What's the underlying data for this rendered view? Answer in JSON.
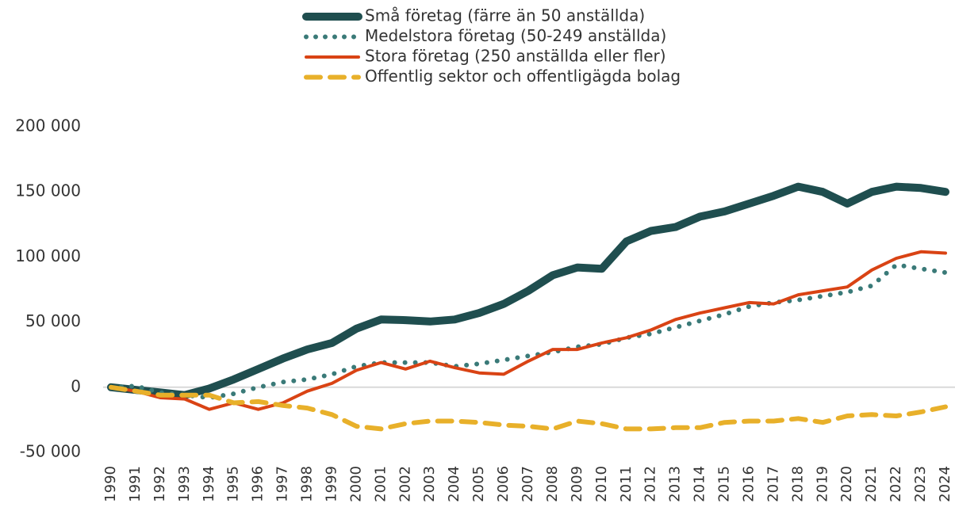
{
  "chart_data": {
    "type": "line",
    "categories": [
      "1990",
      "1991",
      "1992",
      "1993",
      "1994",
      "1995",
      "1996",
      "1997",
      "1998",
      "1999",
      "2000",
      "2001",
      "2002",
      "2003",
      "2004",
      "2005",
      "2006",
      "2007",
      "2008",
      "2009",
      "2010",
      "2011",
      "2012",
      "2013",
      "2014",
      "2015",
      "2016",
      "2017",
      "2018",
      "2019",
      "2020",
      "2021",
      "2022",
      "2023",
      "2024"
    ],
    "series": [
      {
        "name": "Små företag (färre än 50 anställda)",
        "color": "#1f4e4f",
        "style": "solid",
        "values": [
          0,
          -2000,
          -4000,
          -6000,
          -1000,
          6000,
          14000,
          22000,
          29000,
          34000,
          45000,
          52000,
          51500,
          50500,
          52000,
          57000,
          64000,
          74000,
          86000,
          92000,
          91000,
          112000,
          120000,
          123000,
          131000,
          135000,
          141000,
          147000,
          154000,
          150000,
          141000,
          150000,
          154000,
          153000,
          150000
        ]
      },
      {
        "name": "Medelstora företag (50-249 anställda)",
        "color": "#3a7a78",
        "style": "dotted",
        "values": [
          0,
          1000,
          -4000,
          -6000,
          -8000,
          -5000,
          0,
          4000,
          6000,
          10000,
          16000,
          19000,
          19000,
          19000,
          16000,
          18000,
          21000,
          24000,
          27000,
          31000,
          33000,
          38000,
          41000,
          46000,
          51000,
          56000,
          62000,
          65000,
          67000,
          70000,
          73000,
          78000,
          94000,
          91000,
          88000
        ]
      },
      {
        "name": "Stora företag (250 anställda eller fler)",
        "color": "#d94314",
        "style": "solid",
        "values": [
          0,
          -3000,
          -8000,
          -9000,
          -17000,
          -12000,
          -17000,
          -12000,
          -3000,
          3000,
          13000,
          19000,
          14000,
          20000,
          15000,
          11000,
          10000,
          20000,
          29000,
          29000,
          34000,
          38000,
          44000,
          52000,
          57000,
          61000,
          65000,
          64000,
          71000,
          74000,
          77000,
          90000,
          99000,
          104000,
          103000
        ]
      },
      {
        "name": "Offentlig sektor och offentligägda bolag",
        "color": "#e8b02a",
        "style": "dashed",
        "values": [
          0,
          -3000,
          -6000,
          -6000,
          -6000,
          -12000,
          -11000,
          -14000,
          -16000,
          -21000,
          -30000,
          -32000,
          -28000,
          -26000,
          -26000,
          -27000,
          -29000,
          -30000,
          -32000,
          -26000,
          -28000,
          -32000,
          -32000,
          -31000,
          -31000,
          -27000,
          -26000,
          -26000,
          -24000,
          -27000,
          -22000,
          -21000,
          -22000,
          -19000,
          -15000
        ]
      }
    ],
    "ylim": [
      -50000,
      200000
    ],
    "yticks": [
      {
        "value": -50000,
        "label": "-50 000"
      },
      0,
      {
        "value": 50000,
        "label": "50 000"
      },
      {
        "value": 100000,
        "label": "100 000"
      },
      {
        "value": 150000,
        "label": "150 000"
      },
      {
        "value": 200000,
        "label": "200 000"
      }
    ],
    "grid": false
  }
}
